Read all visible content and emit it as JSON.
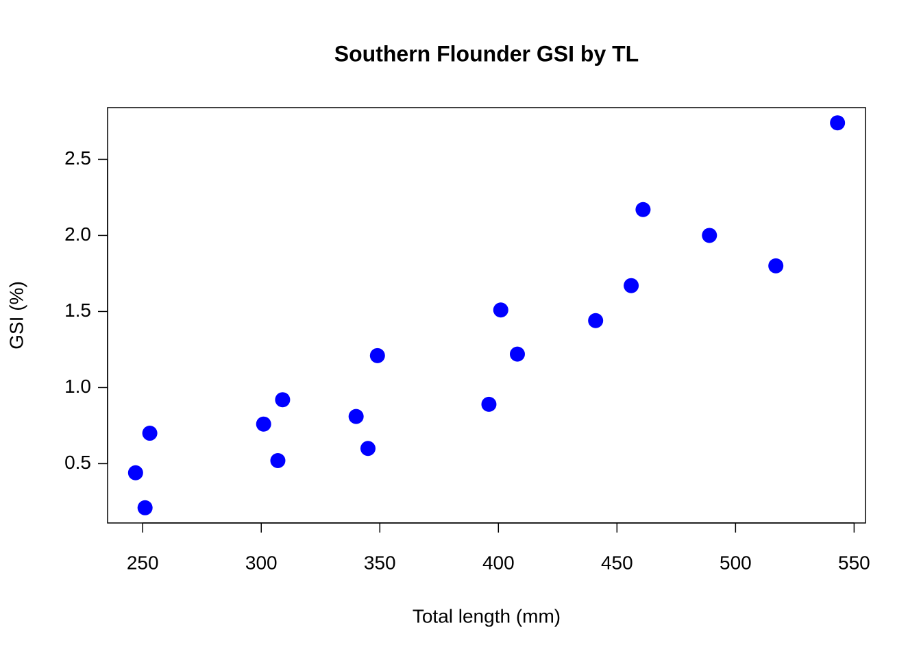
{
  "chart_data": {
    "type": "scatter",
    "title": "Southern Flounder GSI by TL",
    "x_label": "Total length (mm)",
    "y_label": "GSI (%)",
    "x": [
      247,
      251,
      253,
      301,
      307,
      309,
      340,
      345,
      349,
      396,
      401,
      408,
      441,
      456,
      461,
      489,
      517,
      543
    ],
    "values": [
      0.44,
      0.21,
      0.7,
      0.76,
      0.52,
      0.92,
      0.81,
      0.6,
      1.21,
      0.89,
      1.51,
      1.22,
      1.44,
      1.67,
      2.17,
      2.0,
      1.8,
      2.74
    ],
    "color": "#0000ff",
    "xlim": [
      235.2,
      554.8
    ],
    "ylim": [
      0.11,
      2.84
    ],
    "xticks": [
      250,
      300,
      350,
      400,
      450,
      500,
      550
    ],
    "yticks": [
      0.5,
      {
        "value": 1,
        "label": "1.0"
      },
      1.5,
      {
        "value": 2,
        "label": "2.0"
      },
      2.5
    ],
    "grid": false
  }
}
